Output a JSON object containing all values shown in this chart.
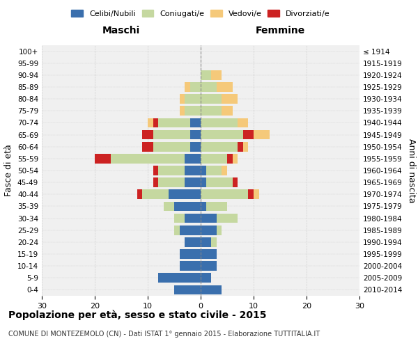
{
  "age_groups": [
    "0-4",
    "5-9",
    "10-14",
    "15-19",
    "20-24",
    "25-29",
    "30-34",
    "35-39",
    "40-44",
    "45-49",
    "50-54",
    "55-59",
    "60-64",
    "65-69",
    "70-74",
    "75-79",
    "80-84",
    "85-89",
    "90-94",
    "95-99",
    "100+"
  ],
  "birth_years": [
    "2010-2014",
    "2005-2009",
    "2000-2004",
    "1995-1999",
    "1990-1994",
    "1985-1989",
    "1980-1984",
    "1975-1979",
    "1970-1974",
    "1965-1969",
    "1960-1964",
    "1955-1959",
    "1950-1954",
    "1945-1949",
    "1940-1944",
    "1935-1939",
    "1930-1934",
    "1925-1929",
    "1920-1924",
    "1915-1919",
    "≤ 1914"
  ],
  "colors": {
    "celibe": "#3a6fad",
    "coniugato": "#c5d8a0",
    "vedovo": "#f5c97a",
    "divorziato": "#cc2222"
  },
  "male": {
    "coniugato": [
      0,
      0,
      0,
      0,
      0,
      1,
      2,
      2,
      5,
      5,
      5,
      14,
      7,
      7,
      6,
      3,
      3,
      2,
      0,
      0,
      0
    ],
    "celibe": [
      5,
      8,
      4,
      4,
      3,
      4,
      3,
      5,
      6,
      3,
      3,
      3,
      2,
      2,
      2,
      0,
      0,
      0,
      0,
      0,
      0
    ],
    "vedovo": [
      0,
      0,
      0,
      0,
      0,
      0,
      0,
      0,
      0,
      0,
      0,
      0,
      0,
      0,
      1,
      1,
      1,
      1,
      0,
      0,
      0
    ],
    "divorziato": [
      0,
      0,
      0,
      0,
      0,
      0,
      0,
      0,
      1,
      1,
      1,
      3,
      2,
      2,
      1,
      0,
      0,
      0,
      0,
      0,
      0
    ]
  },
  "female": {
    "coniugata": [
      0,
      0,
      0,
      0,
      1,
      1,
      4,
      4,
      9,
      5,
      3,
      5,
      7,
      8,
      7,
      4,
      4,
      3,
      2,
      0,
      0
    ],
    "nubile": [
      4,
      2,
      3,
      3,
      2,
      3,
      3,
      1,
      0,
      1,
      1,
      0,
      0,
      0,
      0,
      0,
      0,
      0,
      0,
      0,
      0
    ],
    "vedova": [
      0,
      0,
      0,
      0,
      0,
      0,
      0,
      0,
      1,
      0,
      1,
      1,
      1,
      3,
      2,
      2,
      3,
      3,
      2,
      0,
      0
    ],
    "divorziata": [
      0,
      0,
      0,
      0,
      0,
      0,
      0,
      0,
      1,
      1,
      0,
      1,
      1,
      2,
      0,
      0,
      0,
      0,
      0,
      0,
      0
    ]
  },
  "title": "Popolazione per età, sesso e stato civile - 2015",
  "subtitle": "COMUNE DI MONTEZEMOLO (CN) - Dati ISTAT 1° gennaio 2015 - Elaborazione TUTTITALIA.IT",
  "xlabel_left": "Maschi",
  "xlabel_right": "Femmine",
  "ylabel_left": "Fasce di età",
  "ylabel_right": "Anni di nascita",
  "xlim": 30,
  "legend_labels": [
    "Celibi/Nubili",
    "Coniugati/e",
    "Vedovi/e",
    "Divorziati/e"
  ],
  "bg_color": "#f0f0f0",
  "grid_color": "#d0d0d0"
}
